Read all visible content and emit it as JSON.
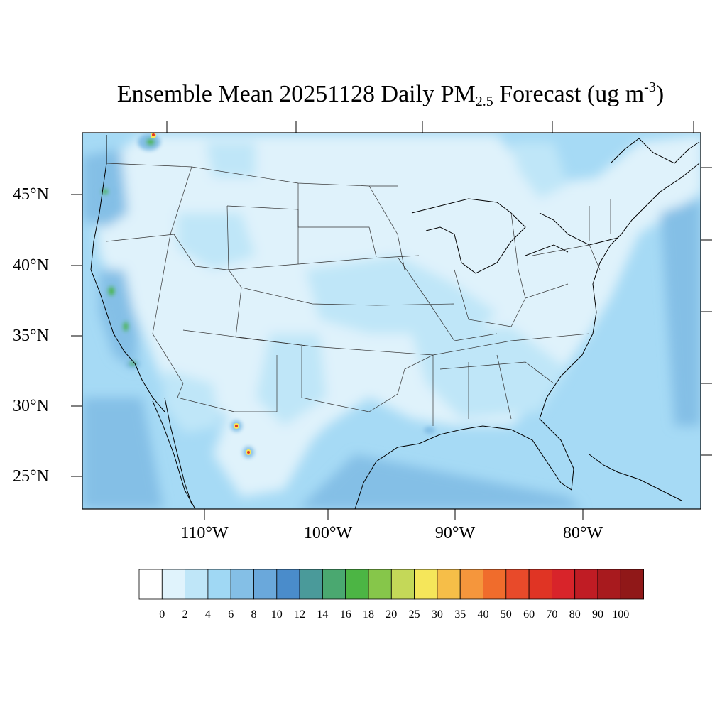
{
  "title": {
    "main": "Ensemble Mean 20251128 Daily PM",
    "sub": "2.5",
    "after": " Forecast (ug m",
    "sup": "-3",
    "close": ")"
  },
  "lat_ticks": [
    "45°N",
    "40°N",
    "35°N",
    "30°N",
    "25°N"
  ],
  "lon_ticks": [
    "110°W",
    "100°W",
    "90°W",
    "80°W"
  ],
  "colorbar": {
    "levels": [
      "0",
      "2",
      "4",
      "6",
      "8",
      "10",
      "12",
      "14",
      "16",
      "18",
      "20",
      "25",
      "30",
      "35",
      "40",
      "50",
      "60",
      "70",
      "80",
      "90",
      "100"
    ],
    "colors": [
      "#ffffff",
      "#e0f3fc",
      "#bfe6f8",
      "#a0d8f4",
      "#84bfe6",
      "#6aa8db",
      "#4a8ccb",
      "#4a9a9a",
      "#4aa870",
      "#4cb544",
      "#86c64a",
      "#c4d858",
      "#f5e65a",
      "#f6be48",
      "#f5963c",
      "#f06c2c",
      "#e84a2a",
      "#e03424",
      "#d8242a",
      "#c01c24",
      "#a81a1e",
      "#901818"
    ]
  },
  "map_colors": {
    "background": "#a6daf5",
    "light": "#dff2fb",
    "mid": "#bfe6f8",
    "dark": "#84bfe6",
    "hotspot_green": "#4cb544",
    "hotspot_yellow": "#f5e65a",
    "hotspot_red": "#e03424"
  }
}
